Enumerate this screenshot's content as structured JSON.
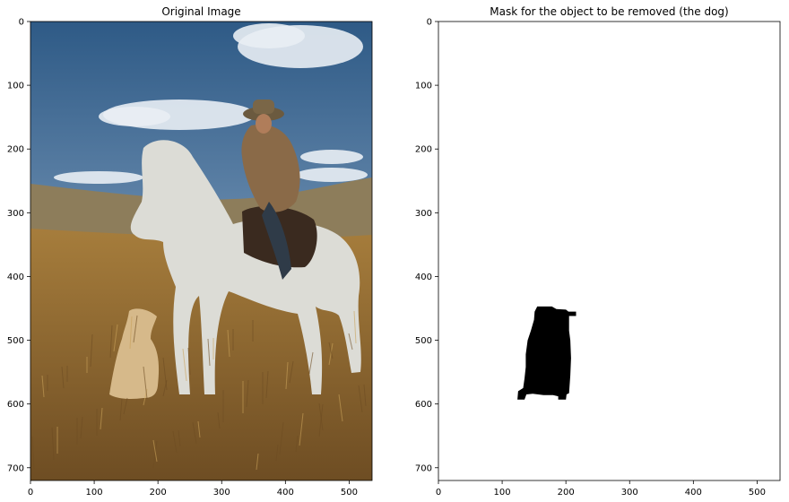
{
  "chart_data": [
    {
      "type": "image",
      "title": "Original Image",
      "xlim": [
        0,
        536
      ],
      "ylim": [
        720,
        0
      ],
      "xticks": [
        0,
        100,
        200,
        300,
        400,
        500
      ],
      "yticks": [
        0,
        100,
        200,
        300,
        400,
        500,
        600,
        700
      ],
      "grid": false
    },
    {
      "type": "image",
      "title": "Mask for the object to be removed (the dog)",
      "xlim": [
        0,
        536
      ],
      "ylim": [
        720,
        0
      ],
      "xticks": [
        0,
        100,
        200,
        300,
        400,
        500
      ],
      "yticks": [
        0,
        100,
        200,
        300,
        400,
        500,
        600,
        700
      ],
      "grid": false,
      "mask_polygon": [
        [
          155,
          447
        ],
        [
          178,
          447
        ],
        [
          185,
          451
        ],
        [
          200,
          452
        ],
        [
          204,
          455
        ],
        [
          216,
          455
        ],
        [
          216,
          462
        ],
        [
          205,
          462
        ],
        [
          205,
          485
        ],
        [
          207,
          500
        ],
        [
          208,
          528
        ],
        [
          207,
          555
        ],
        [
          205,
          583
        ],
        [
          201,
          585
        ],
        [
          200,
          593
        ],
        [
          188,
          593
        ],
        [
          188,
          588
        ],
        [
          180,
          586
        ],
        [
          165,
          586
        ],
        [
          148,
          584
        ],
        [
          138,
          585
        ],
        [
          135,
          593
        ],
        [
          124,
          593
        ],
        [
          125,
          580
        ],
        [
          133,
          575
        ],
        [
          135,
          560
        ],
        [
          137,
          542
        ],
        [
          137,
          522
        ],
        [
          140,
          500
        ],
        [
          145,
          485
        ],
        [
          150,
          468
        ],
        [
          151,
          455
        ]
      ]
    }
  ],
  "colors": {
    "sky_top": "#2e5a86",
    "sky_bottom": "#a7bfd8",
    "cloud": "#e9eef4",
    "hills": "#8d7d5b",
    "grass": "#a67d3c",
    "grass_dark": "#6e4d23",
    "horse": "#dcdcd6",
    "rider_coat": "#8a6a48",
    "dog": "#d6b98a",
    "mask": "#000000",
    "mask_bg": "#ffffff"
  }
}
